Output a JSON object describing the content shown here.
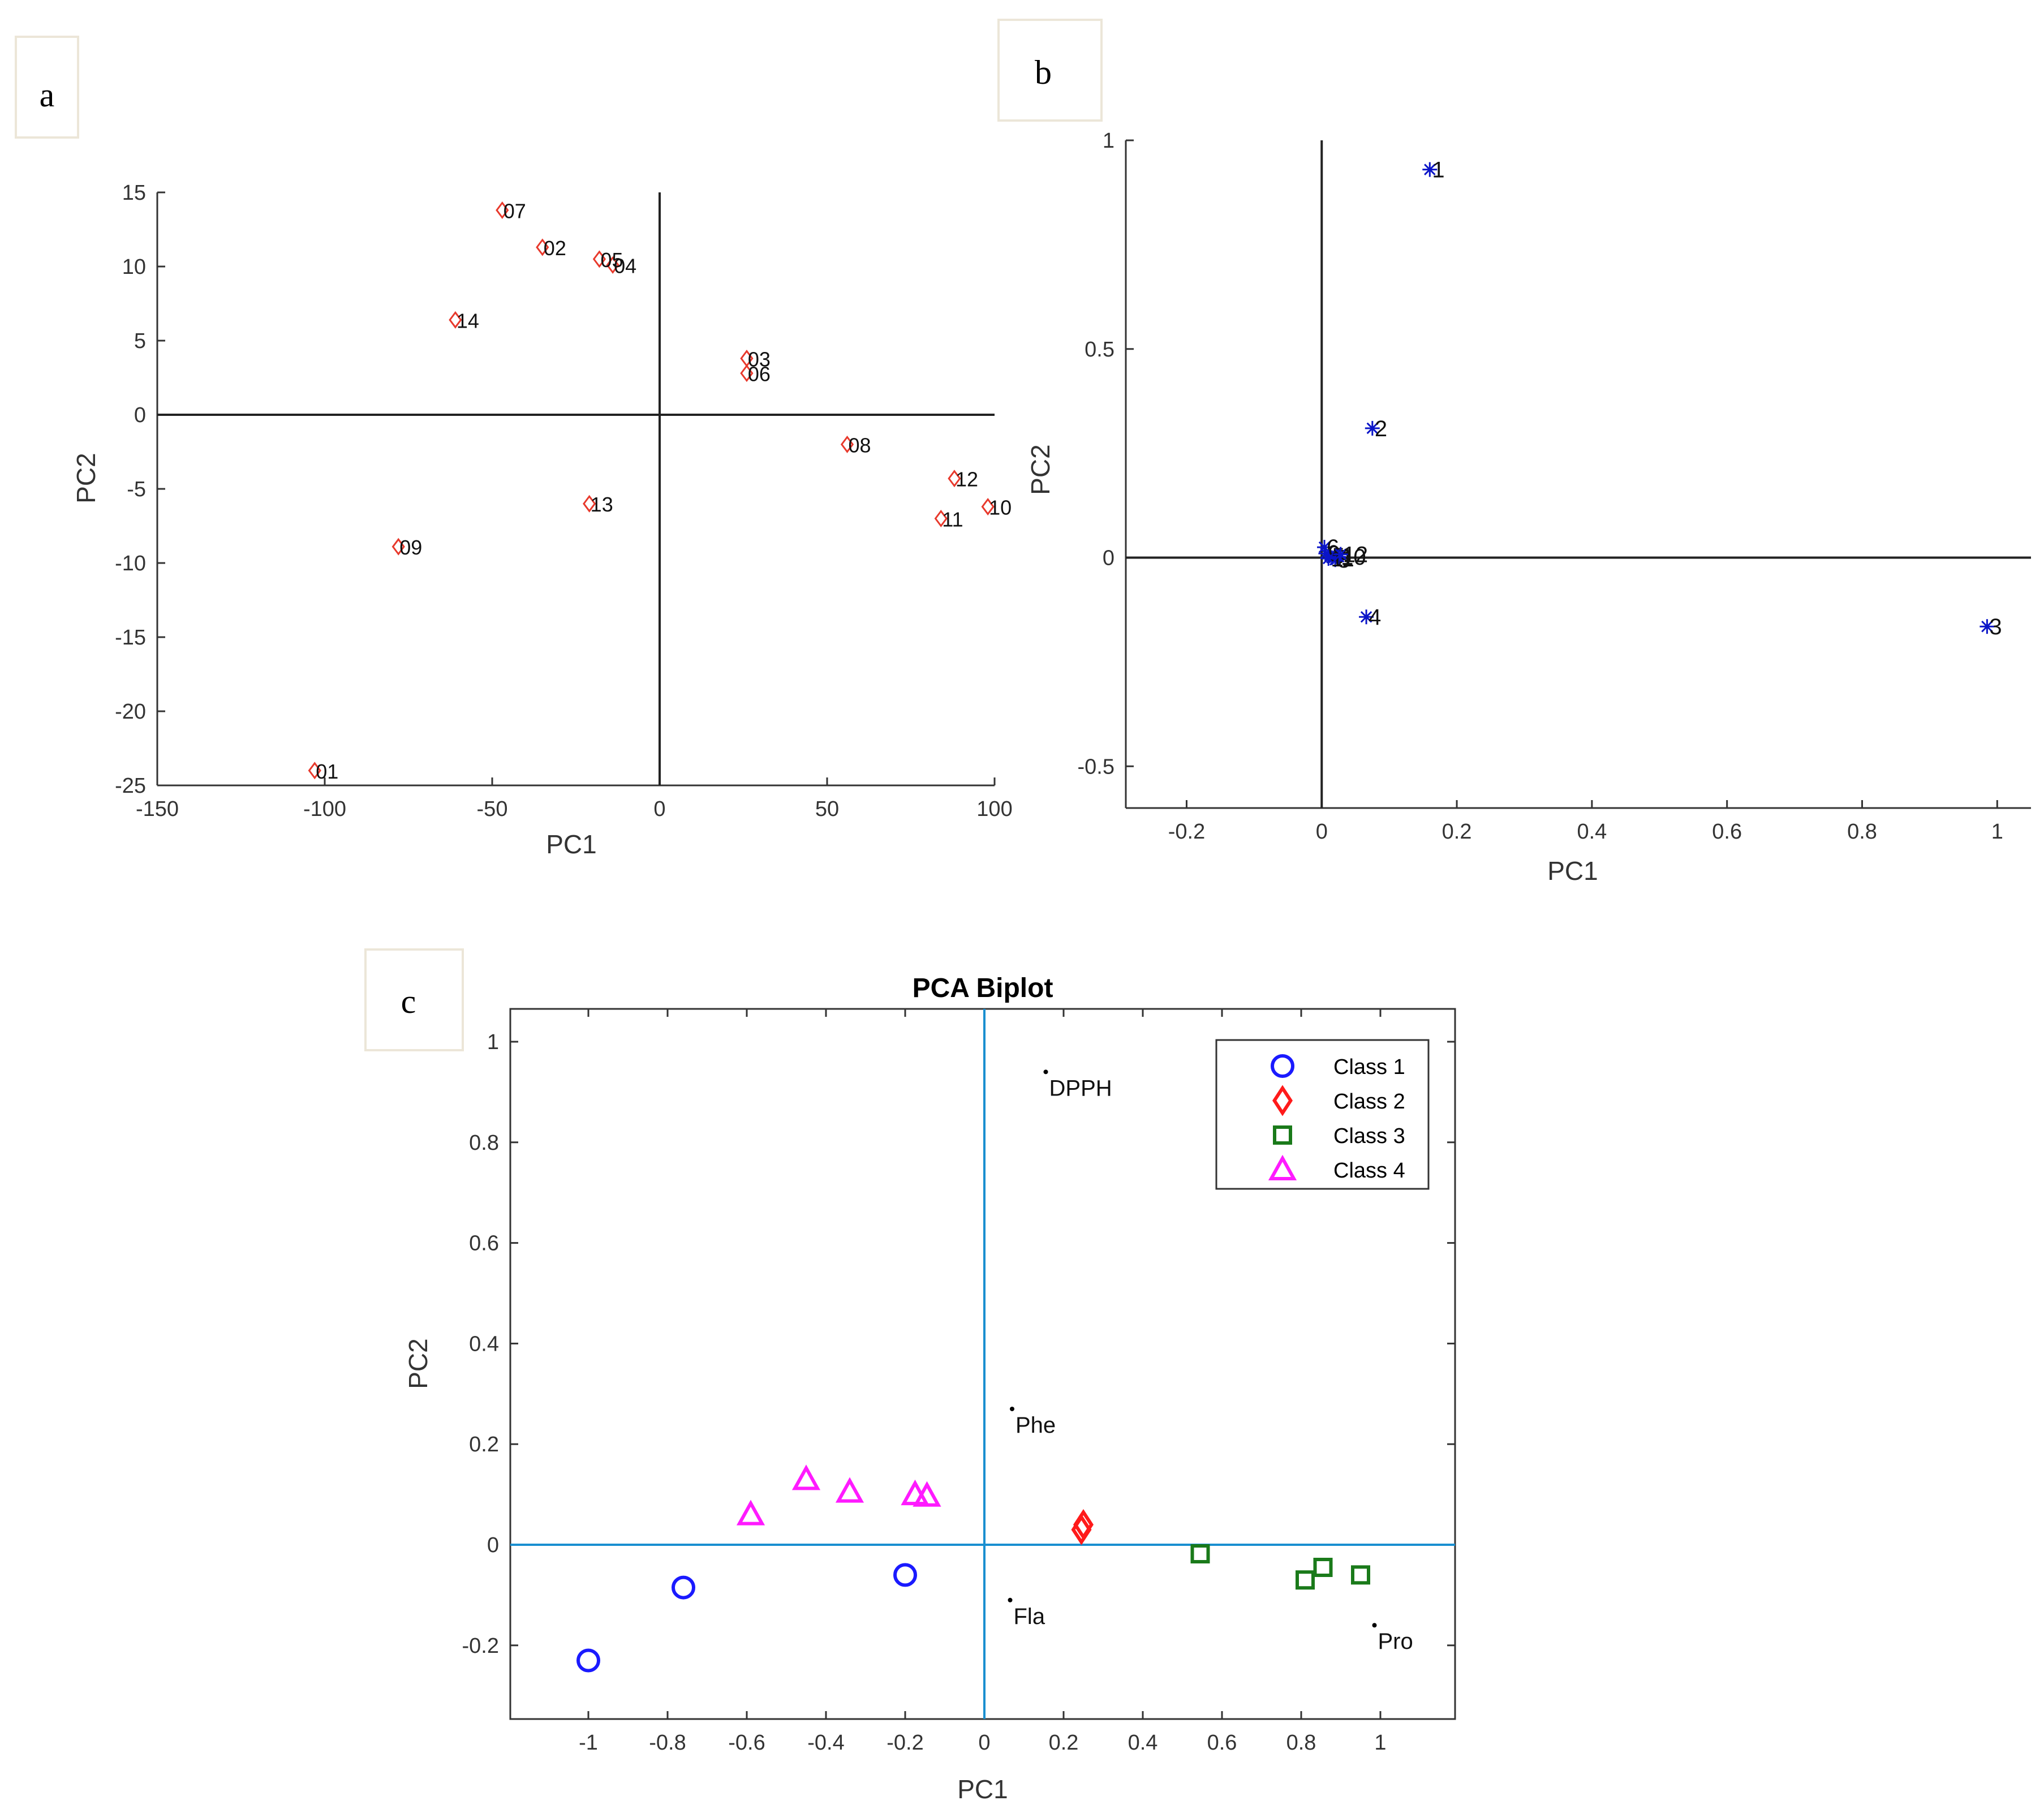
{
  "chart_data": [
    {
      "panel": "a",
      "type": "scatter",
      "title": "",
      "xlabel": "PC1",
      "ylabel": "PC2",
      "xlim": [
        -150,
        100
      ],
      "ylim": [
        -25,
        15
      ],
      "xticks": [
        -150,
        -100,
        -50,
        0,
        50,
        100
      ],
      "yticks": [
        -25,
        -20,
        -15,
        -10,
        -5,
        0,
        5,
        10,
        15
      ],
      "marker_color": "#e8392c",
      "marker": "diamond",
      "points": [
        {
          "label": "01",
          "x": -103,
          "y": -24
        },
        {
          "label": "02",
          "x": -35,
          "y": 11.3
        },
        {
          "label": "03",
          "x": 26,
          "y": 3.8
        },
        {
          "label": "04",
          "x": -14,
          "y": 10.1
        },
        {
          "label": "05",
          "x": -18,
          "y": 10.5
        },
        {
          "label": "06",
          "x": 26,
          "y": 2.8
        },
        {
          "label": "07",
          "x": -47,
          "y": 13.8
        },
        {
          "label": "08",
          "x": 56,
          "y": -2
        },
        {
          "label": "09",
          "x": -78,
          "y": -8.9
        },
        {
          "label": "10",
          "x": 98,
          "y": -6.2
        },
        {
          "label": "11",
          "x": 84,
          "y": -7
        },
        {
          "label": "12",
          "x": 88,
          "y": -4.3
        },
        {
          "label": "13",
          "x": -21,
          "y": -6
        },
        {
          "label": "14",
          "x": -61,
          "y": 6.4
        }
      ]
    },
    {
      "panel": "b",
      "type": "scatter",
      "title": "",
      "xlabel": "PC1",
      "ylabel": "PC2",
      "xlim": [
        -0.29,
        1.05
      ],
      "ylim": [
        -0.6,
        1.0
      ],
      "xticks": [
        -0.2,
        0,
        0.2,
        0.4,
        0.6,
        0.8,
        1
      ],
      "yticks": [
        -0.5,
        0,
        0.5,
        1
      ],
      "marker_color": "#0a14c8",
      "marker": "star",
      "points": [
        {
          "label": "1",
          "x": 0.16,
          "y": 0.93
        },
        {
          "label": "2",
          "x": 0.075,
          "y": 0.31
        },
        {
          "label": "3",
          "x": 0.985,
          "y": -0.165
        },
        {
          "label": "4",
          "x": 0.066,
          "y": -0.142
        },
        {
          "label": "5",
          "x": 0.012,
          "y": 0.005
        },
        {
          "label": "6",
          "x": 0.004,
          "y": 0.025
        },
        {
          "label": "7",
          "x": 0.015,
          "y": 0.0
        },
        {
          "label": "8",
          "x": 0.02,
          "y": -0.005
        },
        {
          "label": "9",
          "x": 0.006,
          "y": 0.01
        },
        {
          "label": "10",
          "x": 0.025,
          "y": 0.002
        },
        {
          "label": "11",
          "x": 0.01,
          "y": -0.002
        },
        {
          "label": "12",
          "x": 0.028,
          "y": 0.008
        }
      ]
    },
    {
      "panel": "c",
      "type": "scatter",
      "title": "PCA Biplot",
      "xlabel": "PC1",
      "ylabel": "PC2",
      "xlim": [
        -1.2,
        1.2
      ],
      "ylim": [
        -0.35,
        1.07
      ],
      "xticks": [
        -1,
        -0.8,
        -0.6,
        -0.4,
        -0.2,
        0,
        0.2,
        0.4,
        0.6,
        0.8,
        1
      ],
      "yticks": [
        -0.2,
        0,
        0.2,
        0.4,
        0.6,
        0.8,
        1
      ],
      "series": [
        {
          "name": "Class 1",
          "color": "#1a1aff",
          "marker": "circle",
          "points": [
            [
              -1.0,
              -0.23
            ],
            [
              -0.76,
              -0.085
            ],
            [
              -0.2,
              -0.06
            ]
          ]
        },
        {
          "name": "Class 2",
          "color": "#ff1a1a",
          "marker": "diamond",
          "points": [
            [
              0.25,
              0.04
            ],
            [
              0.245,
              0.03
            ]
          ]
        },
        {
          "name": "Class 3",
          "color": "#1a7a1a",
          "marker": "square",
          "points": [
            [
              0.545,
              -0.018
            ],
            [
              0.81,
              -0.07
            ],
            [
              0.855,
              -0.045
            ],
            [
              0.95,
              -0.06
            ]
          ]
        },
        {
          "name": "Class 4",
          "color": "#ff1aff",
          "marker": "triangle",
          "points": [
            [
              -0.59,
              0.06
            ],
            [
              -0.45,
              0.13
            ],
            [
              -0.34,
              0.105
            ],
            [
              -0.175,
              0.1
            ],
            [
              -0.145,
              0.097
            ]
          ]
        }
      ],
      "loadings": [
        {
          "label": "DPPH",
          "x": 0.155,
          "y": 0.94
        },
        {
          "label": "Phe",
          "x": 0.07,
          "y": 0.27
        },
        {
          "label": "Fla",
          "x": 0.065,
          "y": -0.11
        },
        {
          "label": "Pro",
          "x": 0.985,
          "y": -0.16
        }
      ],
      "legend_position": "top-right"
    }
  ]
}
